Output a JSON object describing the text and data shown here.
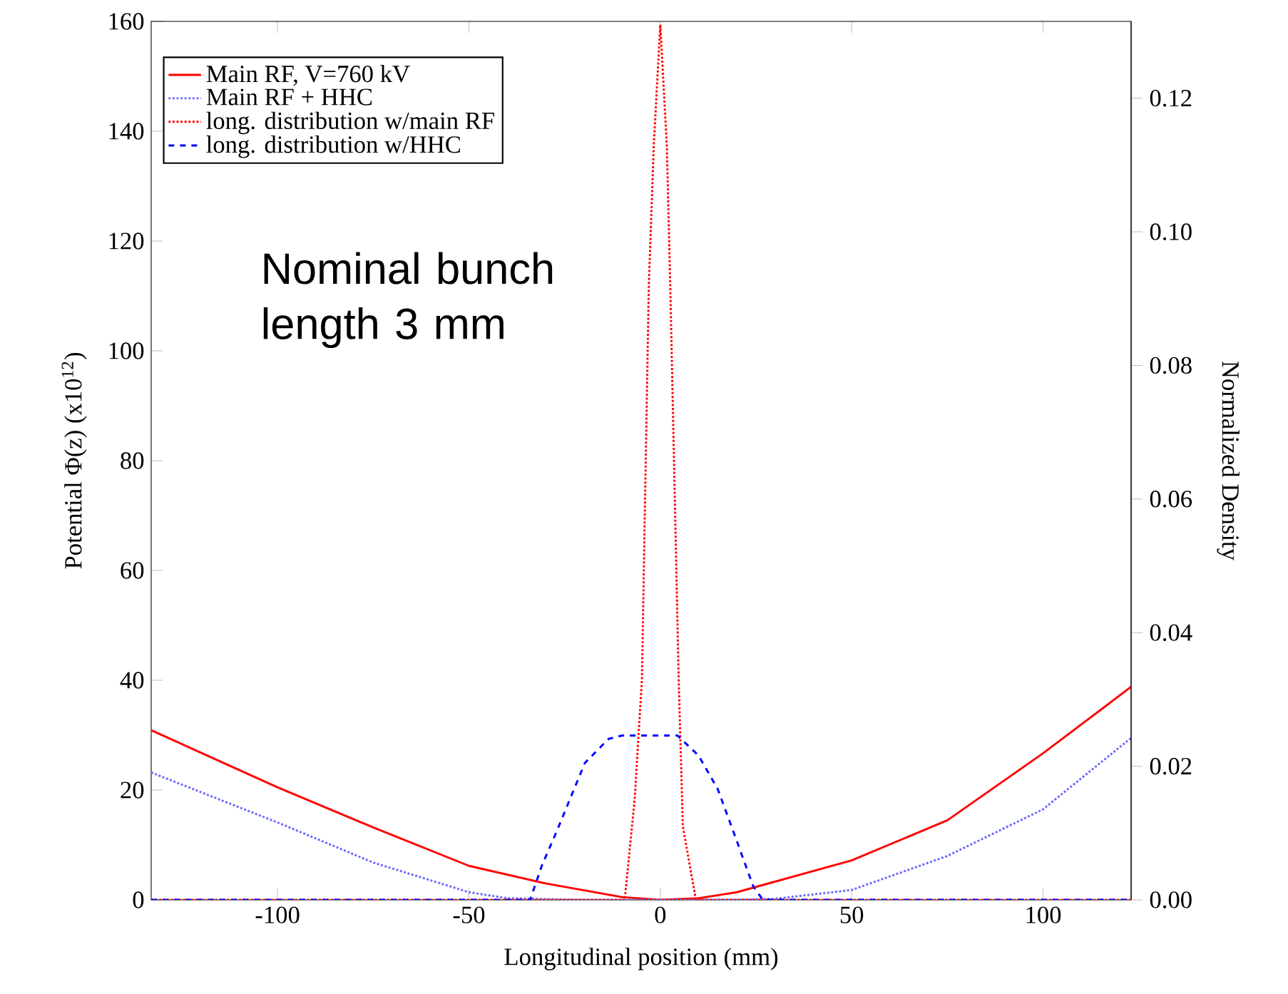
{
  "chart_data": {
    "type": "line",
    "xlabel": "Longitudinal position (mm)",
    "ylabel": "Potential Φ(z) (x10$^{12}$)",
    "y2label": "Normalized Density",
    "annotations": [
      "Nominal bunch length 3 mm"
    ],
    "xlim": [
      -133,
      123
    ],
    "ylim": [
      0,
      160
    ],
    "y2lim": [
      0,
      0.1315
    ],
    "xticks": [
      -100,
      -50,
      0,
      50,
      100
    ],
    "yticks": [
      0,
      20,
      40,
      60,
      80,
      100,
      120,
      140,
      160
    ],
    "y2ticks": [
      {
        "value": 0,
        "label": "0.00"
      },
      {
        "value": 0.02,
        "label": "0.02"
      },
      {
        "value": 0.04,
        "label": "0.04"
      },
      {
        "value": 0.06,
        "label": "0.06"
      },
      {
        "value": 0.08,
        "label": "0.08"
      },
      {
        "value": 0.1,
        "label": "0.10"
      },
      {
        "value": 0.12,
        "label": "0.12"
      }
    ],
    "grid": false,
    "legend": "top left",
    "series": [
      {
        "name": "Main RF, V=760 kV",
        "color": "#ff0000",
        "line_style": "solid",
        "x": [
          -133,
          -100,
          -75,
          -50,
          -30,
          -10,
          0,
          10,
          20,
          50,
          75,
          100,
          123
        ],
        "values": [
          30.9,
          20.5,
          13.2,
          6.2,
          3.0,
          0.5,
          0,
          0.3,
          1.4,
          7.2,
          14.5,
          26.7,
          38.8
        ]
      },
      {
        "name": "Main RF + HHC",
        "color": "#6666ff",
        "line_style": "dotted",
        "x": [
          -133,
          -100,
          -75,
          -50,
          -40,
          -20,
          0,
          20,
          30,
          50,
          75,
          100,
          123
        ],
        "values": [
          23.2,
          14.1,
          6.8,
          1.4,
          0.3,
          0,
          0,
          0,
          0.2,
          1.8,
          8.0,
          16.5,
          29.5
        ]
      },
      {
        "name": "long. distribution w/main RF",
        "color": "#ff0000",
        "line_style": "dotted",
        "axis": "y2",
        "x": [
          -133,
          -10,
          -9.3,
          -6.7,
          -4.8,
          -3,
          -1.7,
          0,
          1.7,
          2.6,
          4.8,
          5.9,
          9.3,
          123
        ],
        "values": [
          0,
          0,
          0,
          0.015,
          0.033,
          0.092,
          0.113,
          0.131,
          0.113,
          0.092,
          0.033,
          0.011,
          0,
          0
        ]
      },
      {
        "name": "long. distribution w/HHC",
        "color": "#0000ff",
        "line_style": "dashed",
        "axis": "y2",
        "x": [
          -133,
          -34,
          -30.9,
          -27.1,
          -22.8,
          -19.7,
          -13.5,
          -10,
          0,
          4.5,
          10,
          15,
          20,
          24.3,
          26.8,
          123
        ],
        "values": [
          0,
          0,
          0.0052,
          0.0102,
          0.0162,
          0.0205,
          0.0241,
          0.0246,
          0.0246,
          0.0246,
          0.0216,
          0.0166,
          0.0088,
          0.002,
          0,
          0
        ]
      }
    ]
  }
}
